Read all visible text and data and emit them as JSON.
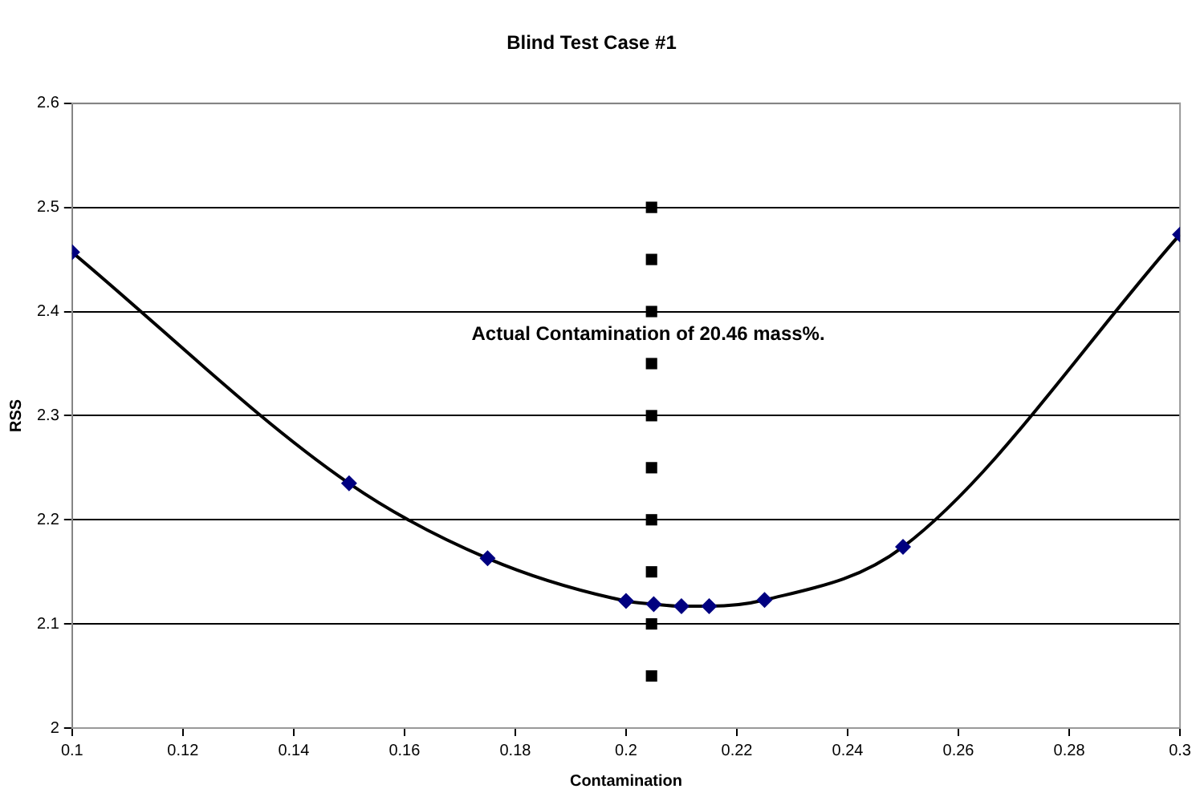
{
  "chart_data": {
    "type": "scatter",
    "title": "Blind Test Case #1",
    "xlabel": "Contamination",
    "ylabel": "RSS",
    "xlim": [
      0.1,
      0.3
    ],
    "xticks": [
      0.1,
      0.12,
      0.14,
      0.16,
      0.18,
      0.2,
      0.22,
      0.24,
      0.26,
      0.28,
      0.3
    ],
    "ylim": [
      2,
      2.6
    ],
    "yticks": [
      2,
      2.1,
      2.2,
      2.3,
      2.4,
      2.5,
      2.6
    ],
    "grid": "y",
    "legend": false,
    "annotations": [
      "Actual Contamination of 20.46 mass%."
    ],
    "series": [
      {
        "type": "line",
        "color": "#000000",
        "marker": "none",
        "x": [
          0.1,
          0.15,
          0.175,
          0.2,
          0.205,
          0.21,
          0.215,
          0.225,
          0.25,
          0.3
        ],
        "values": [
          2.457,
          2.235,
          2.163,
          2.122,
          2.119,
          2.117,
          2.117,
          2.123,
          2.174,
          2.474
        ]
      },
      {
        "type": "scatter",
        "color": "#000080",
        "marker": "diamond",
        "x": [
          0.1,
          0.15,
          0.175,
          0.2,
          0.205,
          0.21,
          0.215,
          0.225,
          0.25,
          0.3
        ],
        "values": [
          2.457,
          2.235,
          2.163,
          2.122,
          2.119,
          2.117,
          2.117,
          2.123,
          2.174,
          2.474
        ]
      },
      {
        "type": "scatter",
        "color": "#000000",
        "marker": "square",
        "x": [
          0.2046,
          0.2046,
          0.2046,
          0.2046,
          0.2046,
          0.2046,
          0.2046,
          0.2046,
          0.2046,
          0.2046
        ],
        "values": [
          2.05,
          2.1,
          2.15,
          2.2,
          2.25,
          2.3,
          2.35,
          2.4,
          2.45,
          2.5
        ]
      }
    ]
  }
}
